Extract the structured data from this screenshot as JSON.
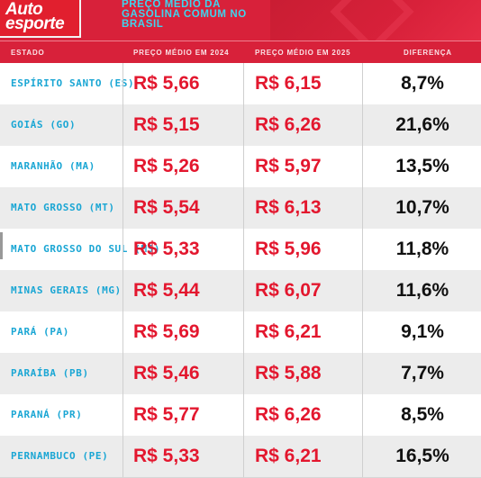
{
  "header": {
    "logo_line1": "Auto",
    "logo_line2": "esporte",
    "subtitle": "PREÇO MÉDIO DA GASOLINA COMUM NO BRASIL"
  },
  "columns": {
    "state": "ESTADO",
    "price_2024": "PREÇO MÉDIO EM 2024",
    "price_2025": "PREÇO MÉDIO EM 2025",
    "difference": "DIFERENÇA"
  },
  "rows": [
    {
      "state": "ESPÍRITO SANTO (ES)",
      "p2024": "R$ 5,66",
      "p2025": "R$ 6,15",
      "diff": "8,7%"
    },
    {
      "state": "GOIÁS (GO)",
      "p2024": "R$ 5,15",
      "p2025": "R$ 6,26",
      "diff": "21,6%"
    },
    {
      "state": "MARANHÃO (MA)",
      "p2024": "R$ 5,26",
      "p2025": "R$ 5,97",
      "diff": "13,5%"
    },
    {
      "state": "MATO GROSSO (MT)",
      "p2024": "R$ 5,54",
      "p2025": "R$ 6,13",
      "diff": "10,7%"
    },
    {
      "state": "MATO GROSSO DO SUL (MS)",
      "p2024": "R$ 5,33",
      "p2025": "R$ 5,96",
      "diff": "11,8%"
    },
    {
      "state": "MINAS GERAIS (MG)",
      "p2024": "R$ 5,44",
      "p2025": "R$ 6,07",
      "diff": "11,6%"
    },
    {
      "state": "PARÁ (PA)",
      "p2024": "R$ 5,69",
      "p2025": "R$ 6,21",
      "diff": "9,1%"
    },
    {
      "state": "PARAÍBA (PB)",
      "p2024": "R$ 5,46",
      "p2025": "R$ 5,88",
      "diff": "7,7%"
    },
    {
      "state": "PARANÁ (PR)",
      "p2024": "R$ 5,77",
      "p2025": "R$ 6,26",
      "diff": "8,5%"
    },
    {
      "state": "PERNAMBUCO (PE)",
      "p2024": "R$ 5,33",
      "p2025": "R$ 6,21",
      "diff": "16,5%"
    }
  ],
  "colors": {
    "header_red": "#d8213a",
    "state_blue": "#1aa6d4",
    "price_red": "#e3172e",
    "diff_black": "#111111"
  }
}
